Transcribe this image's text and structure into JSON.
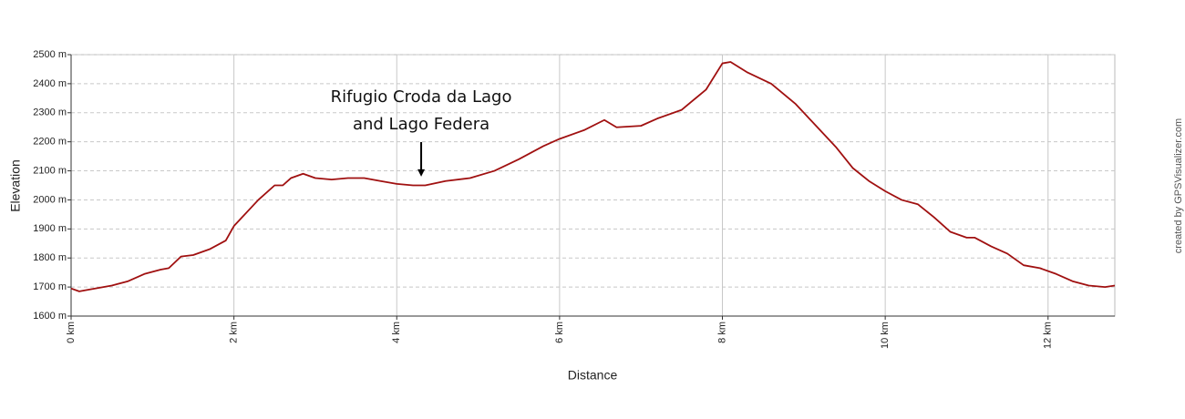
{
  "chart_data": {
    "type": "line",
    "x": [
      0,
      0.1,
      0.2,
      0.5,
      0.7,
      0.9,
      1.1,
      1.2,
      1.35,
      1.5,
      1.7,
      1.9,
      2.0,
      2.3,
      2.5,
      2.6,
      2.7,
      2.85,
      3.0,
      3.2,
      3.4,
      3.6,
      3.8,
      4.0,
      4.2,
      4.35,
      4.6,
      4.9,
      5.2,
      5.5,
      5.8,
      6.0,
      6.3,
      6.55,
      6.7,
      7.0,
      7.2,
      7.5,
      7.8,
      8.0,
      8.1,
      8.3,
      8.6,
      8.9,
      9.0,
      9.2,
      9.4,
      9.6,
      9.8,
      10.0,
      10.2,
      10.4,
      10.6,
      10.8,
      11.0,
      11.1,
      11.3,
      11.5,
      11.7,
      11.9,
      12.1,
      12.3,
      12.5,
      12.7,
      12.82
    ],
    "values": [
      1695,
      1685,
      1690,
      1705,
      1720,
      1745,
      1760,
      1765,
      1805,
      1810,
      1830,
      1860,
      1910,
      2000,
      2050,
      2050,
      2075,
      2090,
      2075,
      2070,
      2075,
      2075,
      2065,
      2055,
      2050,
      2050,
      2065,
      2075,
      2100,
      2140,
      2185,
      2210,
      2240,
      2275,
      2250,
      2255,
      2280,
      2310,
      2380,
      2470,
      2475,
      2440,
      2400,
      2330,
      2300,
      2240,
      2180,
      2110,
      2065,
      2030,
      2000,
      1985,
      1940,
      1890,
      1870,
      1870,
      1840,
      1815,
      1775,
      1765,
      1745,
      1720,
      1705,
      1700,
      1705
    ],
    "color": "#a01010",
    "xlim": [
      0,
      12.82
    ],
    "ylim": [
      1600,
      2500
    ],
    "xticks": [
      {
        "value": 0,
        "label": "0 km"
      },
      {
        "value": 2,
        "label": "2 km"
      },
      {
        "value": 4,
        "label": "4 km"
      },
      {
        "value": 6,
        "label": "6 km"
      },
      {
        "value": 8,
        "label": "8 km"
      },
      {
        "value": 10,
        "label": "10 km"
      },
      {
        "value": 12,
        "label": "12 km"
      }
    ],
    "yticks": [
      {
        "value": 1600,
        "label": "1600 m"
      },
      {
        "value": 1700,
        "label": "1700 m"
      },
      {
        "value": 1800,
        "label": "1800 m"
      },
      {
        "value": 1900,
        "label": "1900 m"
      },
      {
        "value": 2000,
        "label": "2000 m"
      },
      {
        "value": 2100,
        "label": "2100 m"
      },
      {
        "value": 2200,
        "label": "2200 m"
      },
      {
        "value": 2300,
        "label": "2300 m"
      },
      {
        "value": 2400,
        "label": "2400 m"
      },
      {
        "value": 2500,
        "label": "2500 m"
      }
    ],
    "ylabel": "Elevation",
    "xlabel": "Distance",
    "grid": true,
    "annotation": {
      "lines": [
        "Rifugio Croda da Lago",
        "and Lago Federa"
      ],
      "x": 4.3,
      "y": 2080
    },
    "credit": "created by GPSVisualizer.com"
  }
}
